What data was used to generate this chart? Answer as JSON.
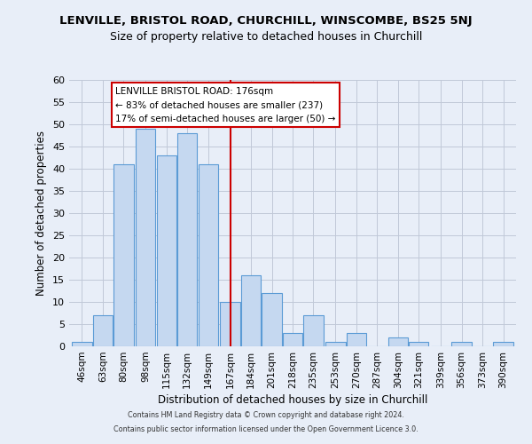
{
  "title": "LENVILLE, BRISTOL ROAD, CHURCHILL, WINSCOMBE, BS25 5NJ",
  "subtitle": "Size of property relative to detached houses in Churchill",
  "xlabel": "Distribution of detached houses by size in Churchill",
  "ylabel": "Number of detached properties",
  "bar_labels": [
    "46sqm",
    "63sqm",
    "80sqm",
    "98sqm",
    "115sqm",
    "132sqm",
    "149sqm",
    "167sqm",
    "184sqm",
    "201sqm",
    "218sqm",
    "235sqm",
    "253sqm",
    "270sqm",
    "287sqm",
    "304sqm",
    "321sqm",
    "339sqm",
    "356sqm",
    "373sqm",
    "390sqm"
  ],
  "bar_values": [
    1,
    7,
    41,
    49,
    43,
    48,
    41,
    10,
    16,
    12,
    3,
    7,
    1,
    3,
    0,
    2,
    1,
    0,
    1,
    0,
    1
  ],
  "bar_edges": [
    46,
    63,
    80,
    98,
    115,
    132,
    149,
    167,
    184,
    201,
    218,
    235,
    253,
    270,
    287,
    304,
    321,
    339,
    356,
    373,
    390
  ],
  "bin_width": 17,
  "bar_color": "#c5d8f0",
  "bar_edge_color": "#5b9bd5",
  "vline_x": 176,
  "vline_color": "#cc0000",
  "ylim": [
    0,
    60
  ],
  "yticks": [
    0,
    5,
    10,
    15,
    20,
    25,
    30,
    35,
    40,
    45,
    50,
    55,
    60
  ],
  "annotation_title": "LENVILLE BRISTOL ROAD: 176sqm",
  "annotation_line1": "← 83% of detached houses are smaller (237)",
  "annotation_line2": "17% of semi-detached houses are larger (50) →",
  "annotation_box_color": "#cc0000",
  "annotation_bg": "#ffffff",
  "grid_color": "#c0c8d8",
  "footer1": "Contains HM Land Registry data © Crown copyright and database right 2024.",
  "footer2": "Contains public sector information licensed under the Open Government Licence 3.0.",
  "bg_color": "#e8eef8"
}
